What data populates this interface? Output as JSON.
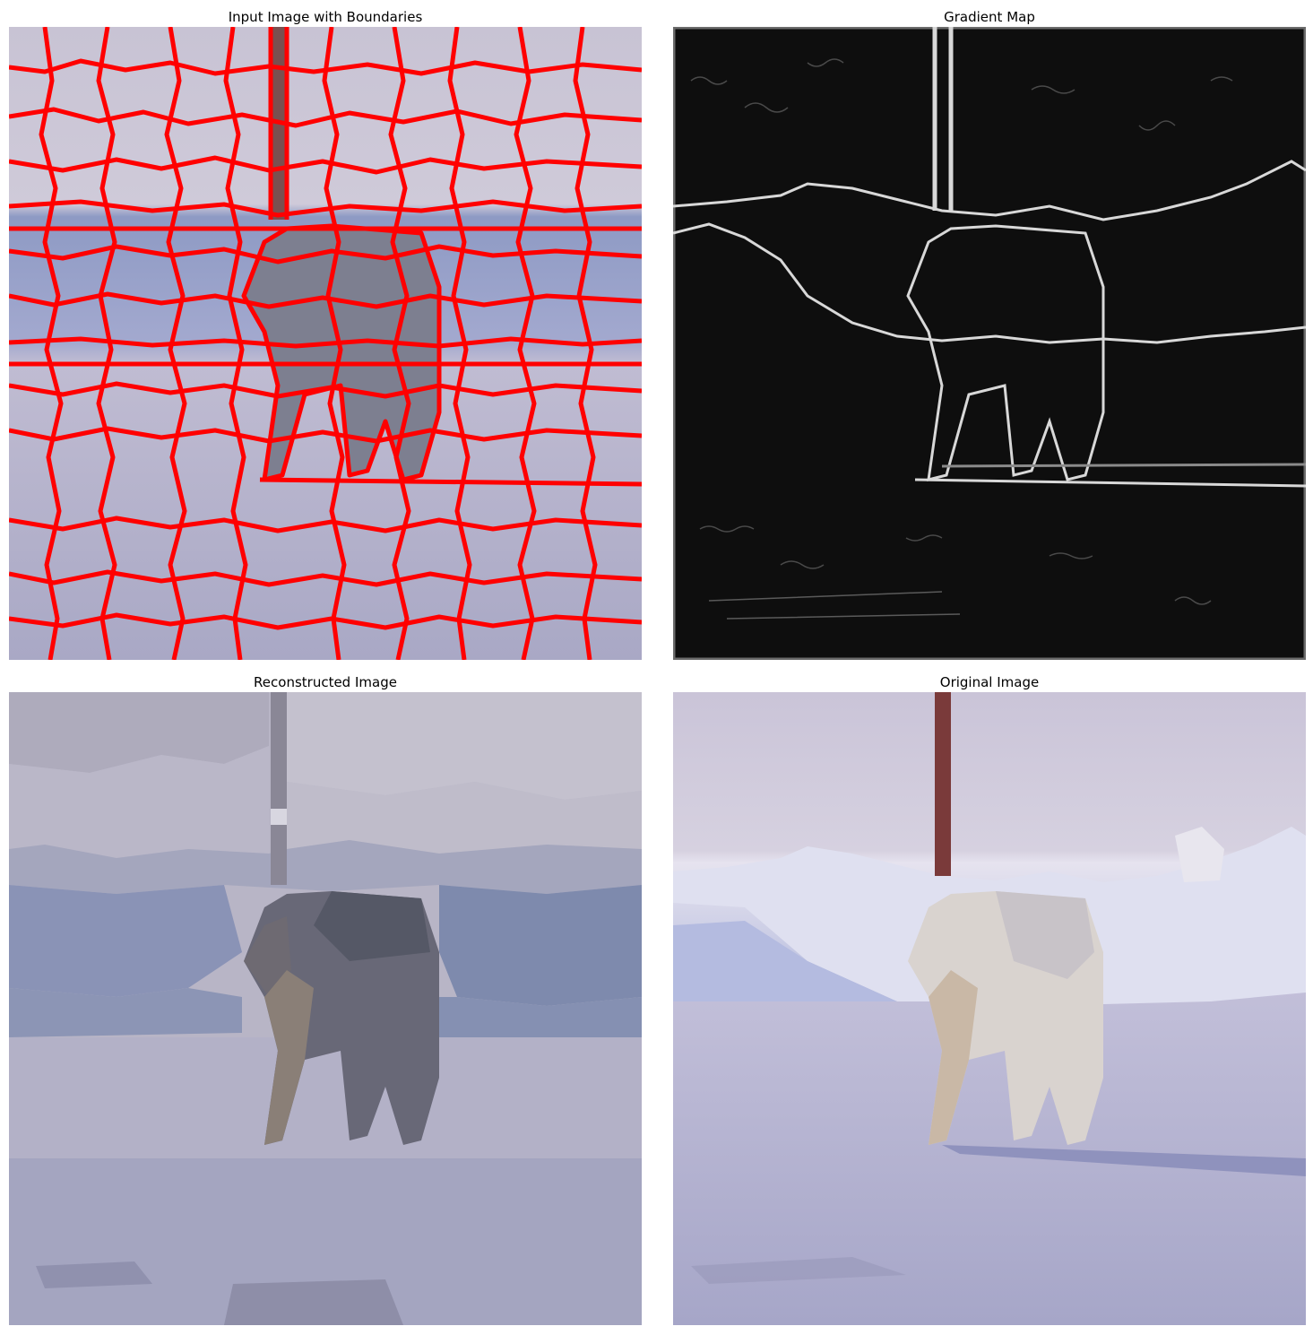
{
  "panels": [
    {
      "id": "input-boundaries",
      "title": "Input Image with Boundaries"
    },
    {
      "id": "gradient-map",
      "title": "Gradient Map"
    },
    {
      "id": "reconstructed",
      "title": "Reconstructed Image"
    },
    {
      "id": "original",
      "title": "Original Image"
    }
  ],
  "colors": {
    "boundary": "#ff0000",
    "snow_light": "#c9c4d6",
    "snow_shadow": "#9aa0c6",
    "gradient_bg": "#0d0d0d",
    "gradient_edge": "#cfcfcf",
    "pole": "#7a3030",
    "wolf": "#d9d2cc"
  }
}
